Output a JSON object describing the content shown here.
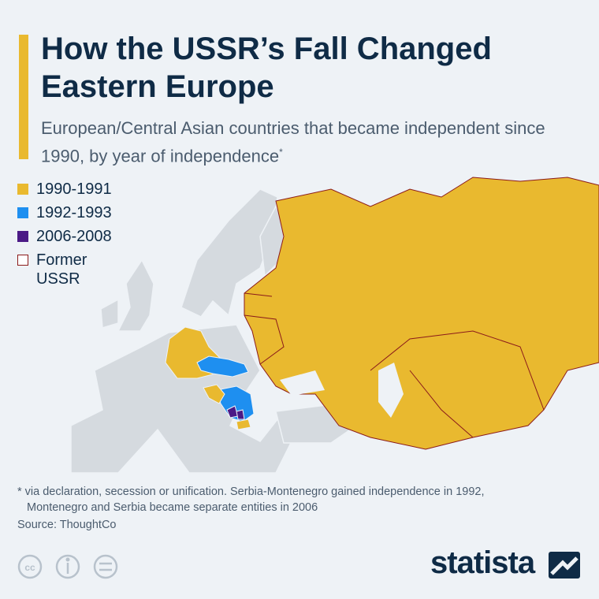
{
  "header": {
    "title": "How the USSR’s Fall Changed Eastern Europe",
    "subtitle": "European/Central Asian countries that became independent since 1990, by year of independence",
    "subtitle_mark": "*"
  },
  "legend": [
    {
      "label": "1990-1991",
      "color": "#e9b92f"
    },
    {
      "label": "1992-1993",
      "color": "#1e8ff0"
    },
    {
      "label": "2006-2008",
      "color": "#4b1a86"
    },
    {
      "label": "Former USSR",
      "color": "#8b1a1a"
    }
  ],
  "footnote": [
    "* via declaration, secession or unification. Serbia-Montenegro gained independence in 1992,",
    "Montenegro and Serbia became separate entities in 2006"
  ],
  "source": "Source: ThoughtCo",
  "brand": "statista"
}
